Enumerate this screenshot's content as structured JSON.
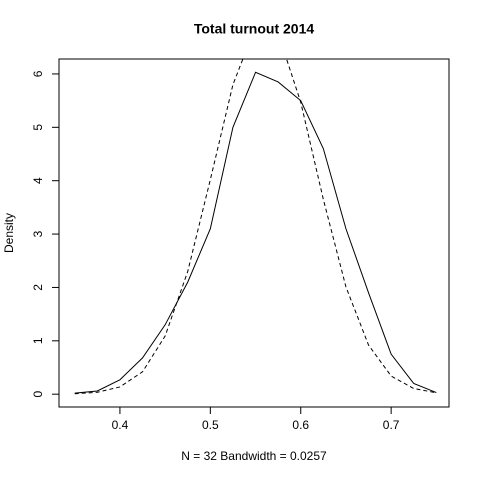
{
  "chart_data": {
    "type": "line",
    "title": "Total turnout 2014",
    "x_label": "N = 32   Bandwidth = 0.0257",
    "y_label": "Density",
    "x": [
      0.35,
      0.375,
      0.4,
      0.425,
      0.45,
      0.475,
      0.5,
      0.525,
      0.55,
      0.575,
      0.6,
      0.625,
      0.65,
      0.675,
      0.7,
      0.725,
      0.75
    ],
    "series": [
      {
        "color": "#000000",
        "dash": false,
        "values": [
          0.02,
          0.06,
          0.27,
          0.68,
          1.3,
          2.1,
          3.1,
          5.0,
          6.03,
          5.85,
          5.5,
          4.6,
          3.1,
          1.9,
          0.75,
          0.2,
          0.03
        ]
      },
      {
        "color": "#000000",
        "dash": true,
        "values": [
          0.008,
          0.036,
          0.136,
          0.42,
          1.09,
          2.3,
          4.02,
          5.8,
          6.89,
          6.76,
          5.47,
          3.65,
          2.01,
          0.92,
          0.34,
          0.106,
          0.027
        ]
      }
    ],
    "xlim": [
      0.3326,
      0.764
    ],
    "ylim": [
      -0.24,
      6.28
    ],
    "xticks": [
      0.4,
      0.5,
      0.6,
      0.7
    ],
    "yticks": [
      0,
      1,
      2,
      3,
      4,
      5,
      6
    ]
  }
}
